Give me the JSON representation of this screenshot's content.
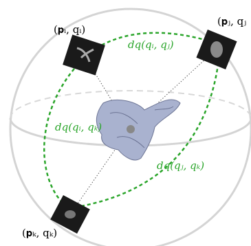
{
  "labels": {
    "view_i": "(𝐩ᵢ, qᵢ)",
    "view_j": "(𝐩ⱼ, qⱼ",
    "view_k": "(𝐩ₖ, qₖ)"
  },
  "distances": {
    "ij": "dq(qᵢ, qⱼ)",
    "ik": "dq(qᵢ, qₖ)",
    "jk": "dq(qⱼ, qₖ)"
  }
}
